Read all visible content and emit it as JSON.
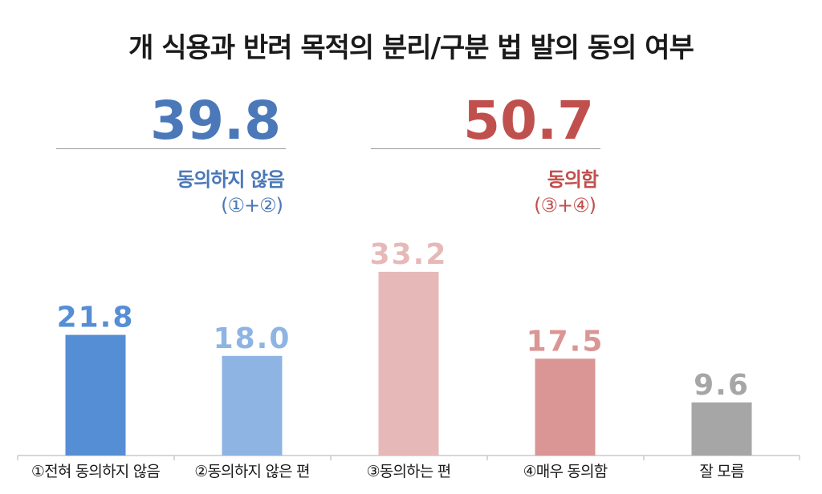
{
  "title": "개 식용과 반려 목적의 분리/구분 법 발의 동의 여부",
  "summary": [
    {
      "value": "39.8",
      "label": "동의하지 않음",
      "formula": "(①+②)",
      "color": "#4a78b8"
    },
    {
      "value": "50.7",
      "label": "동의함",
      "formula": "(③+④)",
      "color": "#c0504d"
    }
  ],
  "chart_data": {
    "type": "bar",
    "categories": [
      "①전혀 동의하지 않음",
      "②동의하지 않은 편",
      "③동의하는 편",
      "④매우 동의함",
      "잘 모름"
    ],
    "values": [
      21.8,
      18.0,
      33.2,
      17.5,
      9.6
    ],
    "value_labels": [
      "21.8",
      "18.0",
      "33.2",
      "17.5",
      "9.6"
    ],
    "bar_colors": [
      "#558ed5",
      "#8eb4e3",
      "#e6b9b8",
      "#d99694",
      "#a6a6a6"
    ],
    "label_colors": [
      "#558ed5",
      "#8eb4e3",
      "#e6b9b8",
      "#d99694",
      "#a6a6a6"
    ],
    "ylim": [
      0,
      40
    ],
    "grid": false,
    "legend": "none"
  }
}
